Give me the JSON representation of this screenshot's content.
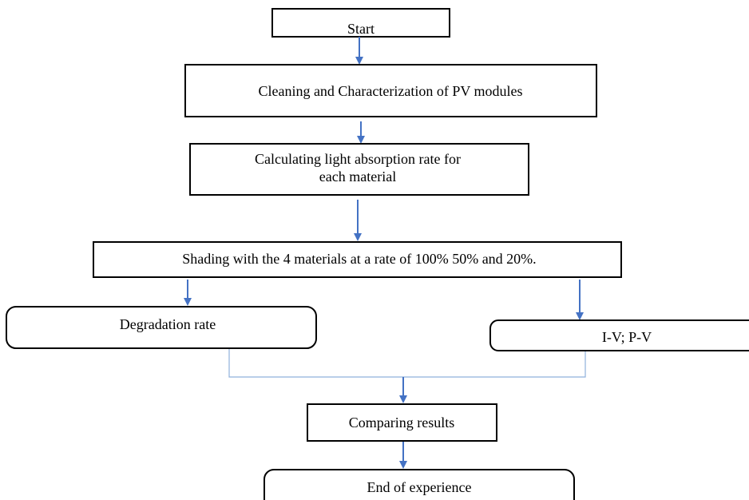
{
  "nodes": [
    {
      "label": "Start"
    },
    {
      "label": "Cleaning and Characterization of PV modules"
    },
    {
      "lines": [
        "Calculating light absorption rate for",
        "each material"
      ]
    },
    {
      "label": "Shading with the 4 materials at a rate of 100% 50% and 20%."
    },
    {
      "label": "Degradation rate"
    },
    {
      "label": "I-V; P-V"
    },
    {
      "label": "Comparing results"
    },
    {
      "label": "End of experience"
    }
  ]
}
